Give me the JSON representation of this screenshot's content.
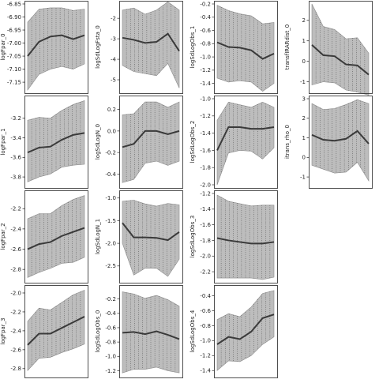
{
  "chart_data": [
    {
      "type": "line",
      "ylabel": "logFpar_0",
      "ylim": [
        -7.18,
        -6.85
      ],
      "yticks": [
        "-6.85",
        "-6.90",
        "-6.95",
        "-7.00",
        "-7.05",
        "-7.10",
        "-7.15"
      ],
      "ytick_values": [
        -6.85,
        -6.9,
        -6.95,
        -7.0,
        -7.05,
        -7.1,
        -7.15
      ],
      "x": [
        0,
        1,
        2,
        3,
        4,
        5
      ],
      "mean": [
        -7.05,
        -6.995,
        -6.975,
        -6.97,
        -6.985,
        -6.97
      ],
      "upper": [
        -6.92,
        -6.87,
        -6.865,
        -6.865,
        -6.875,
        -6.87
      ],
      "lower": [
        -7.18,
        -7.12,
        -7.1,
        -7.09,
        -7.1,
        -7.08
      ]
    },
    {
      "type": "line",
      "ylabel": "logSdLogFsta_0",
      "ylim": [
        -5.5,
        -1.3
      ],
      "yticks": [
        "-2",
        "-3",
        "-4",
        "-5"
      ],
      "ytick_values": [
        -2,
        -3,
        -4,
        -5
      ],
      "x": [
        0,
        1,
        2,
        3,
        4,
        5
      ],
      "mean": [
        -2.95,
        -3.05,
        -3.2,
        -3.15,
        -2.75,
        -3.6
      ],
      "upper": [
        -1.6,
        -1.5,
        -1.8,
        -1.6,
        -1.2,
        -1.6
      ],
      "lower": [
        -4.3,
        -4.6,
        -4.7,
        -4.8,
        -4.2,
        -5.4
      ]
    },
    {
      "type": "line",
      "ylabel": "logSdLogObs_1",
      "ylim": [
        -1.5,
        -0.2
      ],
      "yticks": [
        "-0.2",
        "-0.4",
        "-0.6",
        "-0.8",
        "-1.0",
        "-1.2",
        "-1.4"
      ],
      "ytick_values": [
        -0.2,
        -0.4,
        -0.6,
        -0.8,
        -1.0,
        -1.2,
        -1.4
      ],
      "x": [
        0,
        1,
        2,
        3,
        4,
        5
      ],
      "mean": [
        -0.78,
        -0.85,
        -0.86,
        -0.9,
        -1.03,
        -0.95
      ],
      "upper": [
        -0.22,
        -0.3,
        -0.35,
        -0.38,
        -0.5,
        -0.48
      ],
      "lower": [
        -1.32,
        -1.38,
        -1.36,
        -1.38,
        -1.52,
        -1.4
      ]
    },
    {
      "type": "line",
      "ylabel": "transfIRARdist_0",
      "ylim": [
        -1.4,
        2.8
      ],
      "yticks": [
        "2",
        "1",
        "0",
        "-1"
      ],
      "ytick_values": [
        2,
        1,
        0,
        -1
      ],
      "x": [
        0,
        1,
        2,
        3,
        4,
        5
      ],
      "mean": [
        0.8,
        0.3,
        0.25,
        -0.15,
        -0.2,
        -0.65
      ],
      "upper": [
        2.8,
        1.7,
        1.55,
        1.1,
        1.15,
        0.4
      ],
      "lower": [
        -1.15,
        -1.0,
        -1.05,
        -1.4,
        -1.5,
        -1.65
      ]
    },
    {
      "type": "line",
      "ylabel": "logFpar_1",
      "ylim": [
        -3.88,
        -3.0
      ],
      "yticks": [
        "-3.2",
        "-3.4",
        "-3.6",
        "-3.8"
      ],
      "ytick_values": [
        -3.2,
        -3.4,
        -3.6,
        -3.8
      ],
      "x": [
        0,
        1,
        2,
        3,
        4,
        5
      ],
      "mean": [
        -3.55,
        -3.5,
        -3.49,
        -3.42,
        -3.37,
        -3.35
      ],
      "upper": [
        -3.22,
        -3.19,
        -3.2,
        -3.12,
        -3.06,
        -3.02
      ],
      "lower": [
        -3.85,
        -3.8,
        -3.77,
        -3.7,
        -3.68,
        -3.67
      ]
    },
    {
      "type": "line",
      "ylabel": "logSdLogN_0",
      "ylim": [
        -0.5,
        0.3
      ],
      "yticks": [
        "0.2",
        "0.0",
        "-0.2",
        "-0.4"
      ],
      "ytick_values": [
        0.2,
        0.0,
        -0.2,
        -0.4
      ],
      "x": [
        0,
        1,
        2,
        3,
        4,
        5
      ],
      "mean": [
        -0.15,
        -0.12,
        0.0,
        0.0,
        -0.03,
        0.0
      ],
      "upper": [
        0.15,
        0.16,
        0.27,
        0.27,
        0.22,
        0.27
      ],
      "lower": [
        -0.48,
        -0.45,
        -0.3,
        -0.28,
        -0.32,
        -0.28
      ]
    },
    {
      "type": "line",
      "ylabel": "logSdLogObs_2",
      "ylim": [
        -2.0,
        -1.0
      ],
      "yticks": [
        "-1.0",
        "-1.2",
        "-1.4",
        "-1.6",
        "-1.8",
        "-2.0"
      ],
      "ytick_values": [
        -1.0,
        -1.2,
        -1.4,
        -1.6,
        -1.8,
        -2.0
      ],
      "x": [
        0,
        1,
        2,
        3,
        4,
        5
      ],
      "mean": [
        -1.6,
        -1.33,
        -1.33,
        -1.35,
        -1.35,
        -1.33
      ],
      "upper": [
        -1.25,
        -1.04,
        -1.07,
        -1.1,
        -1.04,
        -1.1
      ],
      "lower": [
        -2.0,
        -1.63,
        -1.6,
        -1.61,
        -1.7,
        -1.57
      ]
    },
    {
      "type": "line",
      "ylabel": "itrans_rho_0",
      "ylim": [
        -1.4,
        3.0
      ],
      "yticks": [
        "3",
        "2",
        "1",
        "0",
        "-1"
      ],
      "ytick_values": [
        3,
        2,
        1,
        0,
        -1
      ],
      "x": [
        0,
        1,
        2,
        3,
        4,
        5
      ],
      "mean": [
        1.15,
        0.9,
        0.85,
        0.95,
        1.35,
        0.7
      ],
      "upper": [
        2.75,
        2.45,
        2.5,
        2.7,
        2.95,
        2.75
      ],
      "lower": [
        -0.4,
        -0.6,
        -0.8,
        -0.75,
        -0.25,
        -1.2
      ]
    },
    {
      "type": "line",
      "ylabel": "logFpar_2",
      "ylim": [
        -2.9,
        -2.05
      ],
      "yticks": [
        "-2.2",
        "-2.4",
        "-2.6",
        "-2.8"
      ],
      "ytick_values": [
        -2.2,
        -2.4,
        -2.6,
        -2.8
      ],
      "x": [
        0,
        1,
        2,
        3,
        4,
        5
      ],
      "mean": [
        -2.6,
        -2.55,
        -2.53,
        -2.47,
        -2.43,
        -2.39
      ],
      "upper": [
        -2.3,
        -2.25,
        -2.25,
        -2.17,
        -2.11,
        -2.07
      ],
      "lower": [
        -2.88,
        -2.83,
        -2.79,
        -2.74,
        -2.73,
        -2.68
      ]
    },
    {
      "type": "line",
      "ylabel": "logSdLogN_1",
      "ylim": [
        -2.8,
        -0.9
      ],
      "yticks": [
        "-1.0",
        "-1.5",
        "-2.0",
        "-2.5"
      ],
      "ytick_values": [
        -1.0,
        -1.5,
        -2.0,
        -2.5
      ],
      "x": [
        0,
        1,
        2,
        3,
        4,
        5
      ],
      "mean": [
        -1.55,
        -1.87,
        -1.87,
        -1.88,
        -1.93,
        -1.75
      ],
      "upper": [
        -1.07,
        -1.05,
        -1.13,
        -1.18,
        -1.12,
        -1.15
      ],
      "lower": [
        -2.0,
        -2.7,
        -2.55,
        -2.55,
        -2.73,
        -2.35
      ]
    },
    {
      "type": "line",
      "ylabel": "logSdLogObs_3",
      "ylim": [
        -2.3,
        -1.2
      ],
      "yticks": [
        "-1.2",
        "-1.4",
        "-1.6",
        "-1.8",
        "-2.0",
        "-2.2"
      ],
      "ytick_values": [
        -1.2,
        -1.4,
        -1.6,
        -1.8,
        -2.0,
        -2.2
      ],
      "x": [
        0,
        1,
        2,
        3,
        4,
        5
      ],
      "mean": [
        -1.77,
        -1.8,
        -1.82,
        -1.84,
        -1.84,
        -1.82
      ],
      "upper": [
        -1.22,
        -1.3,
        -1.33,
        -1.36,
        -1.35,
        -1.35
      ],
      "lower": [
        -2.28,
        -2.28,
        -2.28,
        -2.28,
        -2.3,
        -2.27
      ]
    },
    {
      "type": "line",
      "ylabel": "logFpar_3",
      "ylim": [
        -2.86,
        -1.95
      ],
      "yticks": [
        "-2.0",
        "-2.2",
        "-2.4",
        "-2.6",
        "-2.8"
      ],
      "ytick_values": [
        -2.0,
        -2.2,
        -2.4,
        -2.6,
        -2.8
      ],
      "x": [
        0,
        1,
        2,
        3,
        4,
        5
      ],
      "mean": [
        -2.55,
        -2.43,
        -2.43,
        -2.37,
        -2.31,
        -2.25
      ],
      "upper": [
        -2.3,
        -2.16,
        -2.18,
        -2.1,
        -2.02,
        -1.97
      ],
      "lower": [
        -2.82,
        -2.69,
        -2.68,
        -2.63,
        -2.59,
        -2.54
      ]
    },
    {
      "type": "line",
      "ylabel": "logSdLogObs_0",
      "ylim": [
        -1.25,
        -0.05
      ],
      "yticks": [
        "-0.2",
        "-0.4",
        "-0.6",
        "-0.8",
        "-1.0",
        "-1.2"
      ],
      "ytick_values": [
        -0.2,
        -0.4,
        -0.6,
        -0.8,
        -1.0,
        -1.2
      ],
      "x": [
        0,
        1,
        2,
        3,
        4,
        5
      ],
      "mean": [
        -0.67,
        -0.66,
        -0.69,
        -0.65,
        -0.7,
        -0.76
      ],
      "upper": [
        -0.1,
        -0.13,
        -0.19,
        -0.15,
        -0.21,
        -0.3
      ],
      "lower": [
        -1.23,
        -1.18,
        -1.18,
        -1.15,
        -1.2,
        -1.23
      ]
    },
    {
      "type": "line",
      "ylabel": "logSdLogObs_4",
      "ylim": [
        -1.45,
        -0.3
      ],
      "yticks": [
        "-0.4",
        "-0.6",
        "-0.8",
        "-1.0",
        "-1.2",
        "-1.4"
      ],
      "ytick_values": [
        -0.4,
        -0.6,
        -0.8,
        -1.0,
        -1.2,
        -1.4
      ],
      "x": [
        0,
        1,
        2,
        3,
        4,
        5
      ],
      "mean": [
        -1.05,
        -0.95,
        -0.98,
        -0.88,
        -0.7,
        -0.65
      ],
      "upper": [
        -0.72,
        -0.64,
        -0.68,
        -0.55,
        -0.37,
        -0.33
      ],
      "lower": [
        -1.4,
        -1.27,
        -1.28,
        -1.2,
        -1.05,
        -0.95
      ]
    }
  ]
}
